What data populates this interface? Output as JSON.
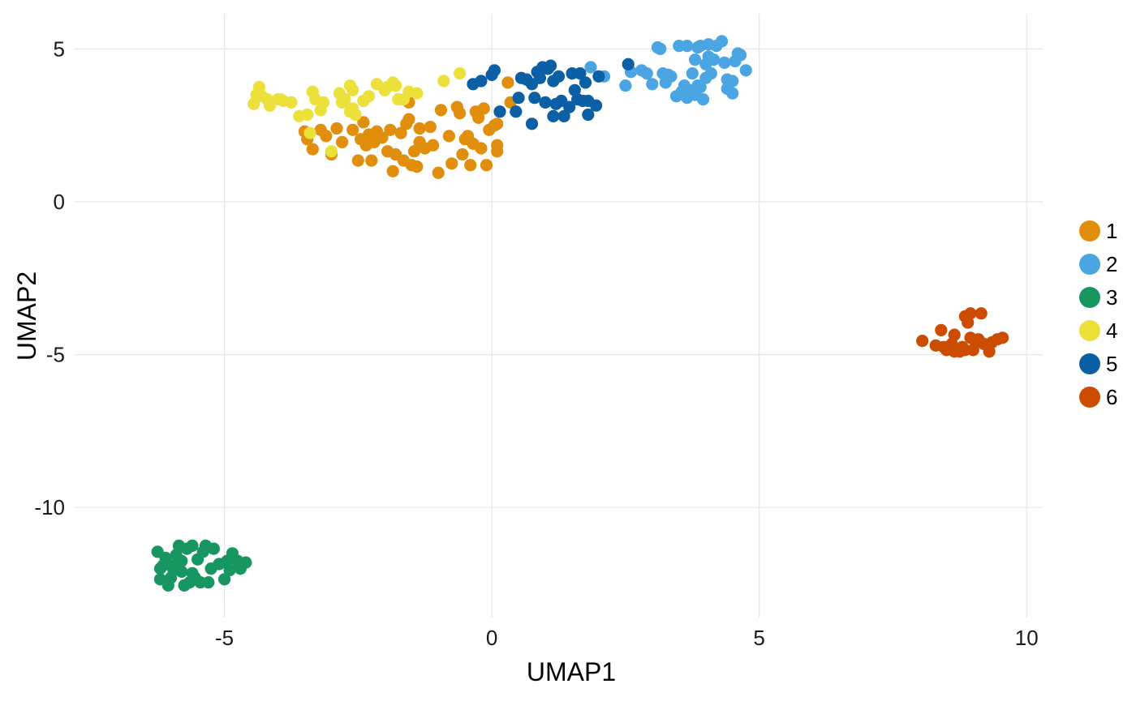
{
  "chart_data": {
    "type": "scatter",
    "title": "",
    "xlabel": "UMAP1",
    "ylabel": "UMAP2",
    "xlim": [
      -7.8,
      10.3
    ],
    "ylim": [
      -13.6,
      6.15
    ],
    "xticks": [
      -5,
      0,
      5,
      10
    ],
    "yticks": [
      5,
      0,
      -5,
      -10
    ],
    "xtick_labels": [
      "-5",
      "0",
      "5",
      "10"
    ],
    "ytick_labels": [
      "5",
      "0",
      "-5",
      "-10"
    ],
    "grid": true,
    "legend": {
      "position": "right",
      "title": ""
    },
    "series": [
      {
        "name": "1",
        "color": "#E08E0B",
        "points": [
          [
            -3.5,
            2.3
          ],
          [
            -3.45,
            2.05
          ],
          [
            -3.35,
            1.72
          ],
          [
            -3.2,
            2.35
          ],
          [
            -3.1,
            2.15
          ],
          [
            -3.0,
            1.55
          ],
          [
            -2.9,
            2.4
          ],
          [
            -2.8,
            1.95
          ],
          [
            -2.6,
            2.35
          ],
          [
            -2.5,
            1.35
          ],
          [
            -2.45,
            2.05
          ],
          [
            -2.4,
            2.6
          ],
          [
            -2.35,
            1.85
          ],
          [
            -2.3,
            2.2
          ],
          [
            -2.25,
            1.35
          ],
          [
            -2.2,
            1.95
          ],
          [
            -2.15,
            2.3
          ],
          [
            -2.05,
            2.1
          ],
          [
            -1.95,
            1.65
          ],
          [
            -1.9,
            2.35
          ],
          [
            -1.85,
            1.0
          ],
          [
            -1.8,
            1.55
          ],
          [
            -1.7,
            2.25
          ],
          [
            -1.65,
            1.35
          ],
          [
            -1.6,
            2.55
          ],
          [
            -1.55,
            2.7
          ],
          [
            -1.55,
            3.25
          ],
          [
            -1.5,
            1.2
          ],
          [
            -1.45,
            1.65
          ],
          [
            -1.4,
            1.15
          ],
          [
            -1.35,
            2.4
          ],
          [
            -1.35,
            1.95
          ],
          [
            -1.25,
            1.75
          ],
          [
            -1.15,
            2.45
          ],
          [
            -1.1,
            1.85
          ],
          [
            -1.0,
            0.95
          ],
          [
            -0.95,
            3.0
          ],
          [
            -0.8,
            2.15
          ],
          [
            -0.75,
            1.25
          ],
          [
            -0.65,
            3.1
          ],
          [
            -0.6,
            2.9
          ],
          [
            -0.55,
            1.55
          ],
          [
            -0.5,
            2.05
          ],
          [
            -0.45,
            2.15
          ],
          [
            -0.4,
            1.2
          ],
          [
            -0.35,
            1.9
          ],
          [
            -0.3,
            2.95
          ],
          [
            -0.25,
            2.75
          ],
          [
            -0.2,
            1.75
          ],
          [
            -0.15,
            3.05
          ],
          [
            -0.1,
            1.2
          ],
          [
            -0.05,
            2.35
          ],
          [
            0.05,
            2.5
          ],
          [
            0.1,
            2.55
          ],
          [
            0.1,
            1.65
          ],
          [
            0.1,
            1.85
          ],
          [
            0.3,
            3.9
          ],
          [
            0.35,
            3.25
          ]
        ]
      },
      {
        "name": "2",
        "color": "#4BA5E3",
        "points": [
          [
            1.85,
            4.4
          ],
          [
            2.1,
            4.1
          ],
          [
            2.5,
            3.8
          ],
          [
            2.6,
            4.25
          ],
          [
            2.8,
            4.3
          ],
          [
            2.9,
            4.2
          ],
          [
            3.0,
            3.85
          ],
          [
            3.1,
            5.05
          ],
          [
            3.15,
            5.0
          ],
          [
            3.2,
            4.2
          ],
          [
            3.25,
            3.9
          ],
          [
            3.3,
            4.15
          ],
          [
            3.35,
            4.1
          ],
          [
            3.45,
            3.45
          ],
          [
            3.5,
            5.1
          ],
          [
            3.55,
            3.6
          ],
          [
            3.6,
            3.8
          ],
          [
            3.65,
            3.4
          ],
          [
            3.65,
            5.1
          ],
          [
            3.7,
            3.65
          ],
          [
            3.75,
            4.2
          ],
          [
            3.8,
            3.5
          ],
          [
            3.8,
            4.65
          ],
          [
            3.85,
            3.8
          ],
          [
            3.85,
            5.05
          ],
          [
            3.9,
            3.75
          ],
          [
            3.9,
            5.1
          ],
          [
            3.95,
            3.35
          ],
          [
            4.0,
            4.05
          ],
          [
            4.0,
            4.5
          ],
          [
            4.05,
            5.15
          ],
          [
            4.05,
            4.75
          ],
          [
            4.1,
            4.2
          ],
          [
            4.15,
            4.65
          ],
          [
            4.2,
            5.1
          ],
          [
            4.3,
            5.25
          ],
          [
            4.35,
            4.55
          ],
          [
            4.4,
            3.7
          ],
          [
            4.4,
            4.0
          ],
          [
            4.5,
            3.95
          ],
          [
            4.5,
            3.55
          ],
          [
            4.55,
            4.6
          ],
          [
            4.6,
            4.85
          ],
          [
            4.65,
            4.8
          ],
          [
            4.75,
            4.3
          ]
        ]
      },
      {
        "name": "3",
        "color": "#189661",
        "points": [
          [
            -6.25,
            -11.45
          ],
          [
            -6.2,
            -12.0
          ],
          [
            -6.2,
            -12.35
          ],
          [
            -6.15,
            -11.9
          ],
          [
            -6.1,
            -11.65
          ],
          [
            -6.05,
            -12.55
          ],
          [
            -6.0,
            -12.3
          ],
          [
            -5.95,
            -11.9
          ],
          [
            -5.9,
            -11.55
          ],
          [
            -5.85,
            -11.25
          ],
          [
            -5.8,
            -12.1
          ],
          [
            -5.8,
            -11.75
          ],
          [
            -5.75,
            -12.55
          ],
          [
            -5.7,
            -11.35
          ],
          [
            -5.65,
            -12.45
          ],
          [
            -5.6,
            -11.25
          ],
          [
            -5.55,
            -12.3
          ],
          [
            -5.5,
            -11.7
          ],
          [
            -5.45,
            -12.45
          ],
          [
            -5.4,
            -11.45
          ],
          [
            -5.35,
            -11.25
          ],
          [
            -5.3,
            -12.45
          ],
          [
            -5.25,
            -12.0
          ],
          [
            -5.2,
            -11.35
          ],
          [
            -5.1,
            -11.85
          ],
          [
            -5.0,
            -12.35
          ],
          [
            -4.95,
            -11.75
          ],
          [
            -4.9,
            -12.05
          ],
          [
            -4.85,
            -11.5
          ],
          [
            -4.75,
            -11.75
          ],
          [
            -4.7,
            -12.0
          ],
          [
            -4.6,
            -11.8
          ],
          [
            -5.95,
            -12.05
          ],
          [
            -5.6,
            -12.15
          ]
        ]
      },
      {
        "name": "4",
        "color": "#ECE13A",
        "points": [
          [
            -4.45,
            3.2
          ],
          [
            -4.4,
            3.5
          ],
          [
            -4.35,
            3.75
          ],
          [
            -4.3,
            3.45
          ],
          [
            -4.2,
            3.35
          ],
          [
            -4.15,
            3.15
          ],
          [
            -4.0,
            3.35
          ],
          [
            -3.95,
            3.35
          ],
          [
            -3.9,
            3.3
          ],
          [
            -3.75,
            3.25
          ],
          [
            -3.6,
            2.8
          ],
          [
            -3.45,
            2.85
          ],
          [
            -3.4,
            2.25
          ],
          [
            -3.35,
            3.6
          ],
          [
            -3.3,
            3.35
          ],
          [
            -3.2,
            3.0
          ],
          [
            -3.15,
            3.25
          ],
          [
            -3.0,
            1.65
          ],
          [
            -2.85,
            3.55
          ],
          [
            -2.8,
            3.25
          ],
          [
            -2.75,
            3.35
          ],
          [
            -2.65,
            3.8
          ],
          [
            -2.6,
            3.65
          ],
          [
            -2.6,
            3.05
          ],
          [
            -2.55,
            2.85
          ],
          [
            -2.4,
            3.3
          ],
          [
            -2.3,
            3.45
          ],
          [
            -2.15,
            3.85
          ],
          [
            -2.0,
            3.65
          ],
          [
            -1.95,
            3.75
          ],
          [
            -1.85,
            3.9
          ],
          [
            -1.75,
            3.35
          ],
          [
            -1.65,
            3.35
          ],
          [
            -1.55,
            3.6
          ],
          [
            -1.4,
            3.55
          ],
          [
            -0.9,
            3.95
          ],
          [
            -0.6,
            4.2
          ],
          [
            -2.65,
            2.95
          ],
          [
            -1.8,
            3.8
          ]
        ]
      },
      {
        "name": "5",
        "color": "#0B5FA5",
        "points": [
          [
            -0.35,
            3.85
          ],
          [
            -0.2,
            3.95
          ],
          [
            0.0,
            4.15
          ],
          [
            0.05,
            4.3
          ],
          [
            0.15,
            2.95
          ],
          [
            0.45,
            2.95
          ],
          [
            0.5,
            3.4
          ],
          [
            0.55,
            4.05
          ],
          [
            0.65,
            4.0
          ],
          [
            0.75,
            3.85
          ],
          [
            0.75,
            2.55
          ],
          [
            0.8,
            3.4
          ],
          [
            0.85,
            4.25
          ],
          [
            0.9,
            4.05
          ],
          [
            0.95,
            4.4
          ],
          [
            1.0,
            3.25
          ],
          [
            1.05,
            4.35
          ],
          [
            1.1,
            4.45
          ],
          [
            1.15,
            3.95
          ],
          [
            1.2,
            3.2
          ],
          [
            1.25,
            4.1
          ],
          [
            1.3,
            3.3
          ],
          [
            1.35,
            2.8
          ],
          [
            1.45,
            3.1
          ],
          [
            1.5,
            4.2
          ],
          [
            1.55,
            3.65
          ],
          [
            1.6,
            3.35
          ],
          [
            1.65,
            4.2
          ],
          [
            1.7,
            3.3
          ],
          [
            1.75,
            3.9
          ],
          [
            1.8,
            3.3
          ],
          [
            1.8,
            2.85
          ],
          [
            1.95,
            3.15
          ],
          [
            2.0,
            4.1
          ],
          [
            2.55,
            4.5
          ],
          [
            1.15,
            2.8
          ]
        ]
      },
      {
        "name": "6",
        "color": "#CC4D02",
        "points": [
          [
            8.05,
            -4.55
          ],
          [
            8.3,
            -4.7
          ],
          [
            8.4,
            -4.2
          ],
          [
            8.45,
            -4.75
          ],
          [
            8.5,
            -4.85
          ],
          [
            8.6,
            -4.65
          ],
          [
            8.65,
            -4.35
          ],
          [
            8.75,
            -4.9
          ],
          [
            8.8,
            -4.75
          ],
          [
            8.85,
            -3.75
          ],
          [
            8.9,
            -3.95
          ],
          [
            8.95,
            -3.65
          ],
          [
            8.95,
            -4.45
          ],
          [
            9.0,
            -4.85
          ],
          [
            9.05,
            -4.6
          ],
          [
            9.1,
            -4.5
          ],
          [
            9.15,
            -3.65
          ],
          [
            9.2,
            -4.65
          ],
          [
            9.3,
            -4.9
          ],
          [
            9.35,
            -4.6
          ],
          [
            9.45,
            -4.5
          ],
          [
            9.55,
            -4.45
          ],
          [
            8.85,
            -4.85
          ],
          [
            8.65,
            -4.9
          ]
        ]
      }
    ]
  }
}
